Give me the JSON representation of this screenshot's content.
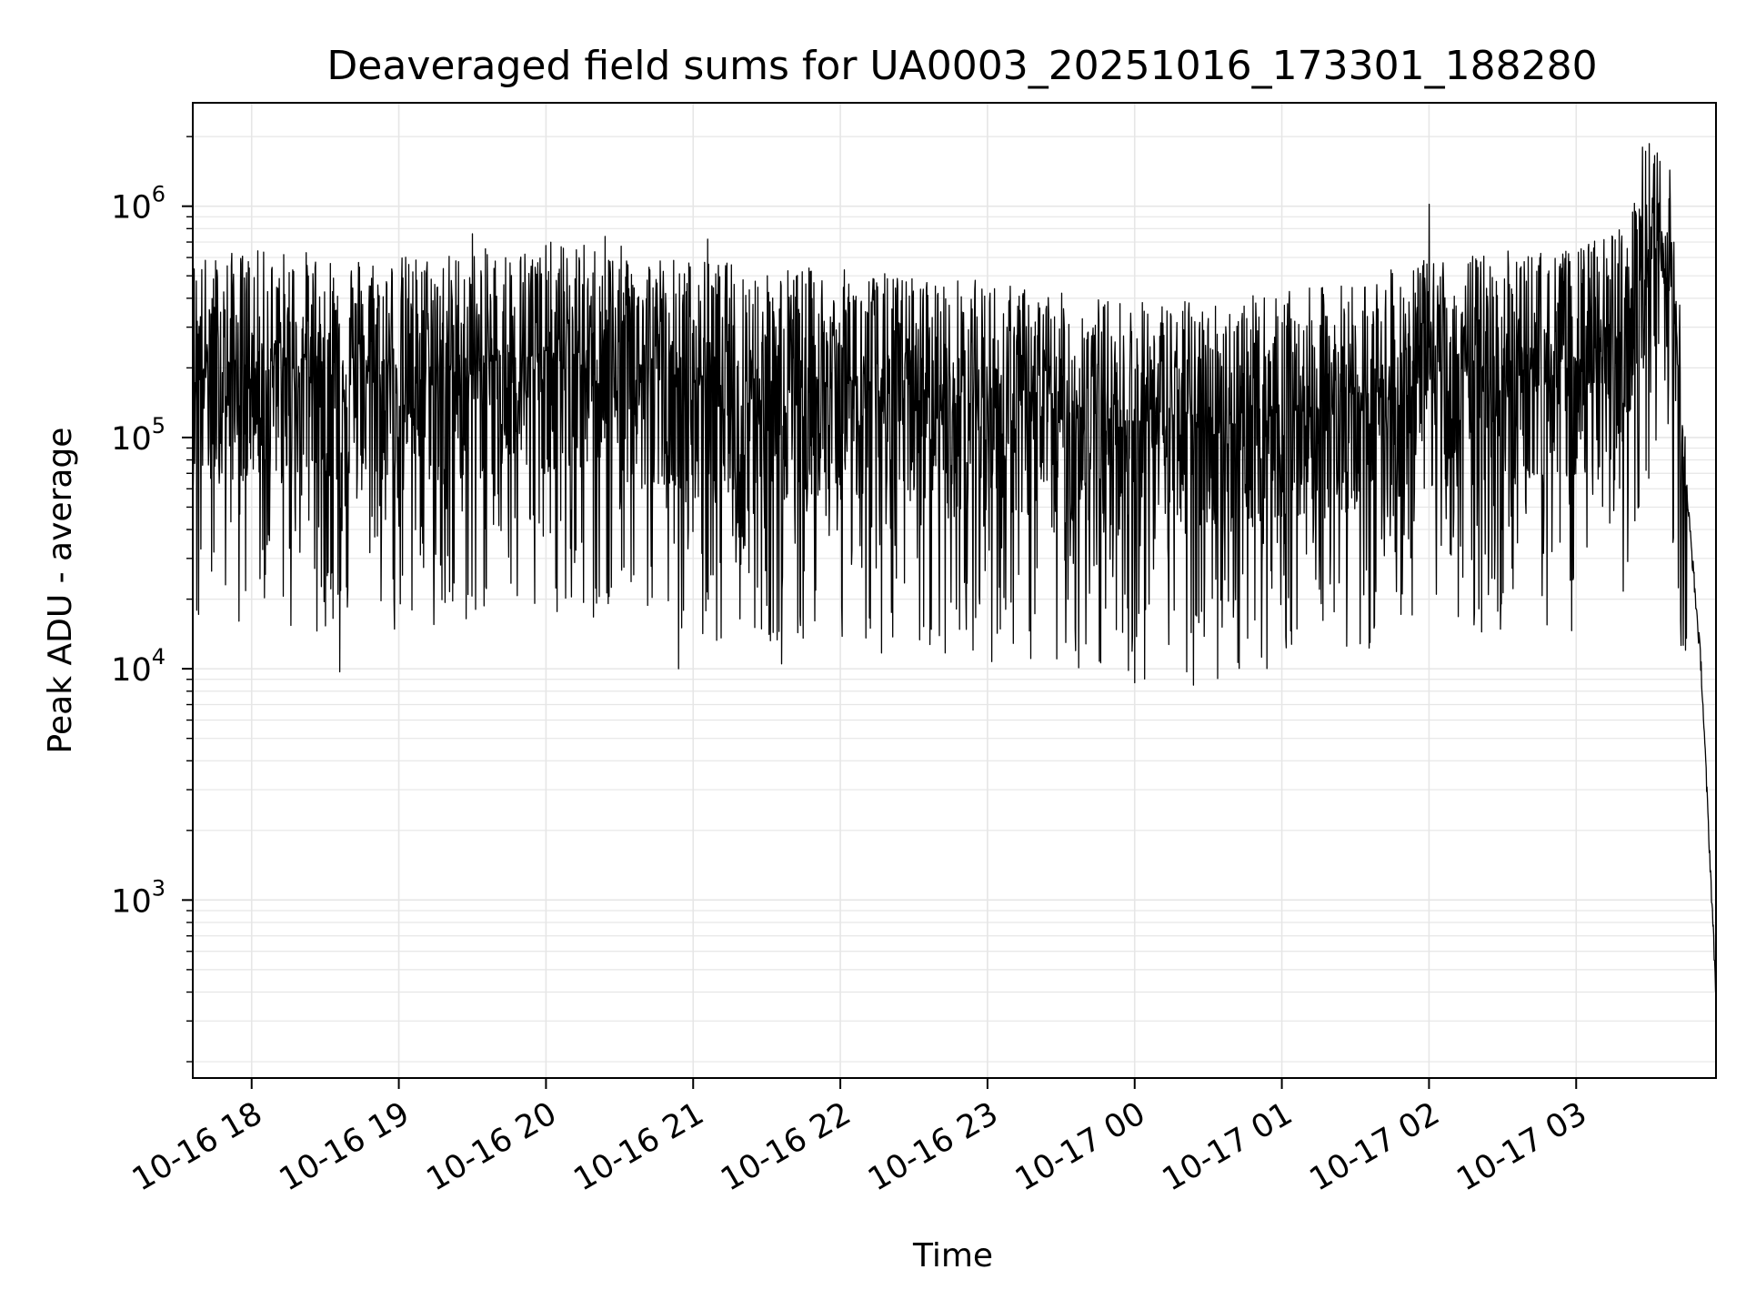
{
  "chart_data": {
    "type": "line",
    "title": "Deaveraged field sums for UA0003_20251016_173301_188280",
    "xlabel": "Time",
    "ylabel": "Peak ADU - average",
    "yscale": "log",
    "ylim": [
      170,
      2800000
    ],
    "xlim_hours": [
      17.6,
      27.95
    ],
    "grid": true,
    "x_ticks": [
      {
        "hour": 18,
        "label": "10-16 18"
      },
      {
        "hour": 19,
        "label": "10-16 19"
      },
      {
        "hour": 20,
        "label": "10-16 20"
      },
      {
        "hour": 21,
        "label": "10-16 21"
      },
      {
        "hour": 22,
        "label": "10-16 22"
      },
      {
        "hour": 23,
        "label": "10-16 23"
      },
      {
        "hour": 24,
        "label": "10-17 00"
      },
      {
        "hour": 25,
        "label": "10-17 01"
      },
      {
        "hour": 26,
        "label": "10-17 02"
      },
      {
        "hour": 27,
        "label": "10-17 03"
      }
    ],
    "y_ticks": [
      {
        "value": 1000,
        "base": "10",
        "exp": "3"
      },
      {
        "value": 10000,
        "base": "10",
        "exp": "4"
      },
      {
        "value": 100000,
        "base": "10",
        "exp": "5"
      },
      {
        "value": 1000000,
        "base": "10",
        "exp": "6"
      }
    ],
    "series": [
      {
        "name": "field sums",
        "color": "#000000",
        "envelope_hours": [
          17.6,
          18.0,
          18.5,
          19.0,
          19.5,
          20.0,
          20.5,
          21.0,
          21.5,
          22.0,
          22.5,
          23.0,
          23.5,
          24.0,
          24.5,
          25.0,
          25.5,
          26.0,
          26.5,
          27.0,
          27.3,
          27.5,
          27.65,
          27.75,
          27.85,
          27.9,
          27.95
        ],
        "envelope_median": [
          220000,
          230000,
          230000,
          220000,
          230000,
          250000,
          240000,
          210000,
          200000,
          190000,
          180000,
          170000,
          150000,
          140000,
          140000,
          150000,
          170000,
          210000,
          230000,
          230000,
          300000,
          700000,
          500000,
          60000,
          10000,
          2000,
          400
        ],
        "peaks": [
          {
            "hour": 18.6,
            "value": 880000
          },
          {
            "hour": 19.5,
            "value": 760000
          },
          {
            "hour": 20.4,
            "value": 740000
          },
          {
            "hour": 21.1,
            "value": 720000
          },
          {
            "hour": 26.0,
            "value": 1020000
          },
          {
            "hour": 27.45,
            "value": 1800000
          },
          {
            "hour": 27.55,
            "value": 1700000
          }
        ],
        "troughs": [
          {
            "hour": 18.6,
            "value": 9700
          },
          {
            "hour": 20.9,
            "value": 10000
          },
          {
            "hour": 21.6,
            "value": 10500
          },
          {
            "hour": 24.0,
            "value": 8700
          },
          {
            "hour": 24.4,
            "value": 8500
          },
          {
            "hour": 25.6,
            "value": 13000
          }
        ]
      }
    ]
  }
}
